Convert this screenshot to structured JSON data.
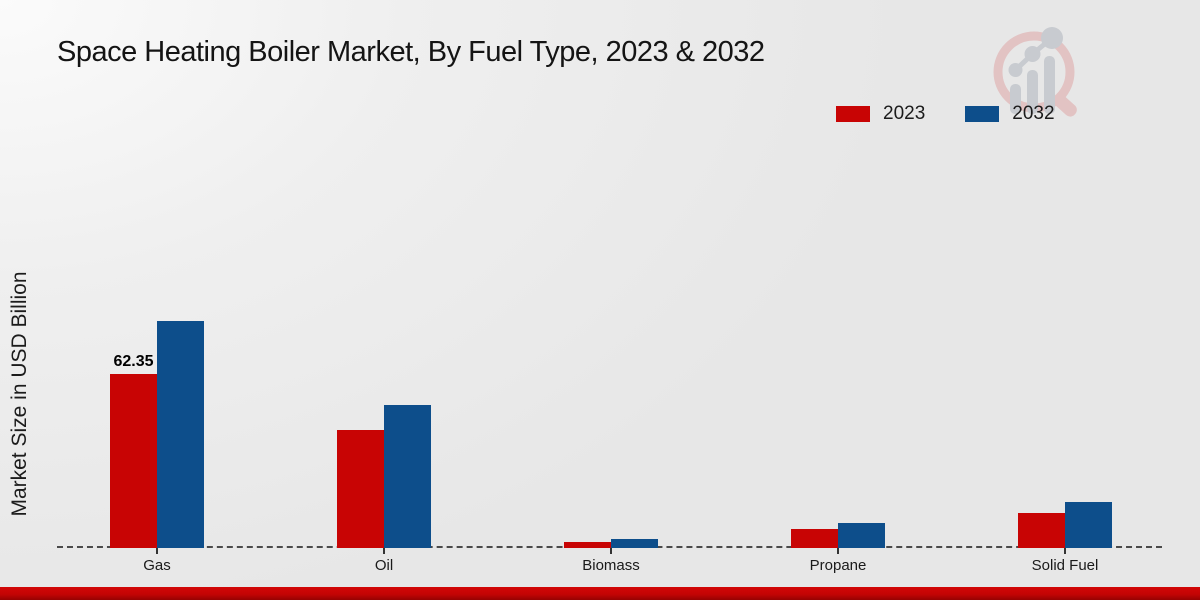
{
  "title": "Space Heating Boiler Market, By Fuel Type, 2023 & 2032",
  "y_axis_label": "Market Size in USD Billion",
  "legend": {
    "items": [
      {
        "label": "2023",
        "color": "#c80404"
      },
      {
        "label": "2032",
        "color": "#0d4e8b"
      }
    ]
  },
  "watermark_icon": "market-research-magnifier-logo",
  "colors": {
    "series_2023": "#c80404",
    "series_2032": "#0d4e8b",
    "baseline": "#4a4a4a",
    "footer_bar": "#c40404",
    "background": "#ececec"
  },
  "chart_data": {
    "type": "bar",
    "title": "Space Heating Boiler Market, By Fuel Type, 2023 & 2032",
    "xlabel": "",
    "ylabel": "Market Size in USD Billion",
    "categories": [
      "Gas",
      "Oil",
      "Biomass",
      "Propane",
      "Solid Fuel"
    ],
    "series": [
      {
        "name": "2023",
        "color": "#c80404",
        "values": [
          62.35,
          42.3,
          2.1,
          6.8,
          12.4
        ]
      },
      {
        "name": "2032",
        "color": "#0d4e8b",
        "values": [
          81.4,
          51.2,
          3.2,
          9.0,
          16.5
        ]
      }
    ],
    "data_labels": [
      {
        "category": "Gas",
        "series": "2023",
        "text": "62.35"
      }
    ],
    "ylim": [
      0,
      90
    ],
    "grid": false,
    "baseline_style": "dashed",
    "legend_position": "top-right"
  }
}
